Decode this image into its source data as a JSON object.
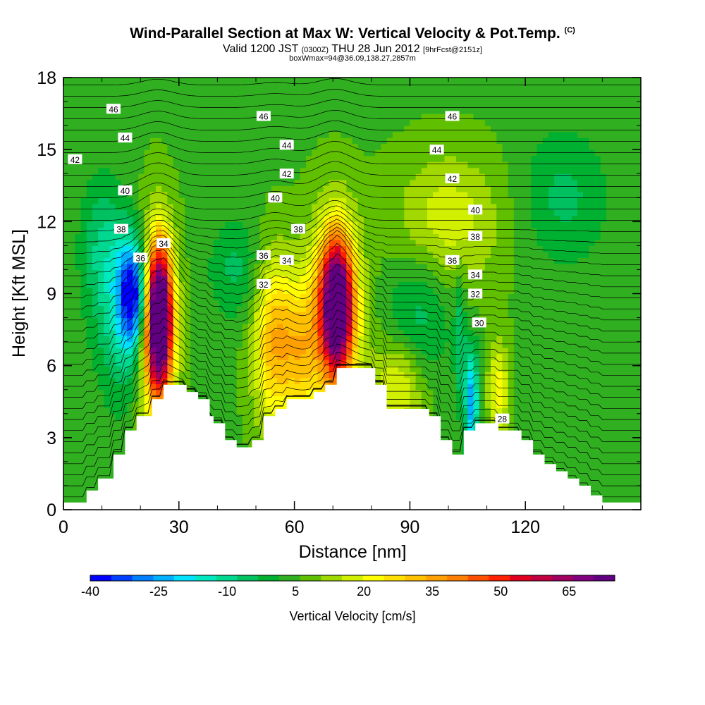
{
  "title": {
    "main": "Wind-Parallel Section at Max W: Vertical Velocity & Pot.Temp.",
    "mark": "(C)",
    "line2_a": "Valid 1200 JST",
    "line2_b": "(0300Z)",
    "line2_c": "THU 28 Jun 2012",
    "line2_d": "[9hrFcst@2151z]",
    "line3": "boxWmax=94@36.09,138.27,2857m"
  },
  "chart_data": {
    "type": "heatmap",
    "xlabel": "Distance [nm]",
    "ylabel": "Height [Kft MSL]",
    "xlim": [
      0,
      150
    ],
    "ylim": [
      0,
      18
    ],
    "xticks": [
      0,
      30,
      60,
      90,
      120
    ],
    "yticks": [
      0,
      3,
      6,
      9,
      12,
      15,
      18
    ],
    "colorbar": {
      "label": "Vertical Velocity [cm/s]",
      "tick_labels": [
        "-40",
        "-25",
        "-10",
        "5",
        "20",
        "35",
        "50",
        "65"
      ],
      "tick_values": [
        -40,
        -25,
        -10,
        5,
        20,
        35,
        50,
        65
      ],
      "range": [
        -40,
        75
      ],
      "colors": [
        "#0000ff",
        "#0040ff",
        "#0080ff",
        "#00b0ff",
        "#00e0ff",
        "#00e8c0",
        "#00d890",
        "#00c060",
        "#00b030",
        "#30b020",
        "#60c000",
        "#a0d800",
        "#d0f000",
        "#ffff00",
        "#ffe000",
        "#ffc000",
        "#ffa000",
        "#ff8000",
        "#ff5000",
        "#ff2000",
        "#e00020",
        "#c00040",
        "#a00060",
        "#800080",
        "#600080"
      ]
    },
    "background_w": 5,
    "terrain_height_kft": [
      [
        0,
        0.3
      ],
      [
        6,
        0.3
      ],
      [
        6,
        0.8
      ],
      [
        9,
        0.8
      ],
      [
        9,
        1.3
      ],
      [
        13,
        1.3
      ],
      [
        13,
        2.3
      ],
      [
        16,
        2.3
      ],
      [
        16,
        3.3
      ],
      [
        19,
        3.3
      ],
      [
        19,
        3.9
      ],
      [
        23,
        3.9
      ],
      [
        23,
        4.6
      ],
      [
        26,
        4.6
      ],
      [
        26,
        5.2
      ],
      [
        32,
        5.2
      ],
      [
        32,
        4.9
      ],
      [
        35,
        4.9
      ],
      [
        35,
        4.6
      ],
      [
        38,
        4.6
      ],
      [
        38,
        3.9
      ],
      [
        39,
        3.9
      ],
      [
        39,
        3.6
      ],
      [
        42,
        3.6
      ],
      [
        42,
        2.9
      ],
      [
        45,
        2.9
      ],
      [
        45,
        2.6
      ],
      [
        49,
        2.6
      ],
      [
        49,
        2.9
      ],
      [
        52,
        2.9
      ],
      [
        52,
        3.9
      ],
      [
        55,
        3.9
      ],
      [
        55,
        4.2
      ],
      [
        58,
        4.2
      ],
      [
        58,
        4.6
      ],
      [
        65,
        4.6
      ],
      [
        65,
        4.9
      ],
      [
        68,
        4.9
      ],
      [
        68,
        5.2
      ],
      [
        71,
        5.2
      ],
      [
        71,
        5.9
      ],
      [
        81,
        5.9
      ],
      [
        81,
        5.2
      ],
      [
        84,
        5.2
      ],
      [
        84,
        4.2
      ],
      [
        95,
        4.2
      ],
      [
        95,
        3.9
      ],
      [
        98,
        3.9
      ],
      [
        98,
        2.9
      ],
      [
        101,
        2.9
      ],
      [
        101,
        2.3
      ],
      [
        104,
        2.3
      ],
      [
        104,
        3.3
      ],
      [
        107,
        3.3
      ],
      [
        107,
        3.6
      ],
      [
        113,
        3.6
      ],
      [
        113,
        3.3
      ],
      [
        119,
        3.3
      ],
      [
        119,
        2.9
      ],
      [
        122,
        2.9
      ],
      [
        122,
        2.3
      ],
      [
        125,
        2.3
      ],
      [
        125,
        1.9
      ],
      [
        128,
        1.9
      ],
      [
        128,
        1.6
      ],
      [
        131,
        1.6
      ],
      [
        131,
        1.3
      ],
      [
        134,
        1.3
      ],
      [
        134,
        1.0
      ],
      [
        137,
        1.0
      ],
      [
        137,
        0.6
      ],
      [
        140,
        0.6
      ],
      [
        140,
        0.3
      ],
      [
        150,
        0.3
      ]
    ],
    "vertical_velocity_cells": [
      {
        "x": 25,
        "y": 8.0,
        "sx": 2.2,
        "sy": 2.0,
        "w": 70
      },
      {
        "x": 24,
        "y": 7.5,
        "sx": 3.5,
        "sy": 3.0,
        "w": 35
      },
      {
        "x": 18,
        "y": 9.0,
        "sx": 2.5,
        "sy": 1.5,
        "w": -38
      },
      {
        "x": 16,
        "y": 8.0,
        "sx": 5,
        "sy": 2.5,
        "w": -15
      },
      {
        "x": 71,
        "y": 8.5,
        "sx": 3.0,
        "sy": 2.0,
        "w": 68
      },
      {
        "x": 70,
        "y": 8.0,
        "sx": 5,
        "sy": 3,
        "w": 25
      },
      {
        "x": 55,
        "y": 7.0,
        "sx": 4,
        "sy": 2.5,
        "w": 30
      },
      {
        "x": 62,
        "y": 6.5,
        "sx": 3,
        "sy": 2,
        "w": 18
      },
      {
        "x": 87,
        "y": 5.2,
        "sx": 5,
        "sy": 1.5,
        "w": 18
      },
      {
        "x": 106,
        "y": 4.5,
        "sx": 1.2,
        "sy": 1.5,
        "w": -30
      },
      {
        "x": 103,
        "y": 7,
        "sx": 1,
        "sy": 2,
        "w": -10
      },
      {
        "x": 113,
        "y": 5.0,
        "sx": 2,
        "sy": 1.5,
        "w": 18
      },
      {
        "x": 92,
        "y": 8.0,
        "sx": 6,
        "sy": 2,
        "w": -10
      },
      {
        "x": 45,
        "y": 10,
        "sx": 5,
        "sy": 1.5,
        "w": -8
      },
      {
        "x": 130,
        "y": 13,
        "sx": 8,
        "sy": 2,
        "w": -8
      },
      {
        "x": 100,
        "y": 12,
        "sx": 10,
        "sy": 2,
        "w": 15
      },
      {
        "x": 10,
        "y": 11,
        "sx": 4,
        "sy": 2,
        "w": -10
      }
    ],
    "isentrope_labels": [
      {
        "value": "46",
        "x": 13,
        "y": 16.7
      },
      {
        "value": "46",
        "x": 52,
        "y": 16.4
      },
      {
        "value": "46",
        "x": 101,
        "y": 16.4
      },
      {
        "value": "44",
        "x": 16,
        "y": 15.5
      },
      {
        "value": "44",
        "x": 58,
        "y": 15.2
      },
      {
        "value": "44",
        "x": 97,
        "y": 15.0
      },
      {
        "value": "42",
        "x": 3,
        "y": 14.6
      },
      {
        "value": "42",
        "x": 58,
        "y": 14.0
      },
      {
        "value": "42",
        "x": 101,
        "y": 13.8
      },
      {
        "value": "40",
        "x": 16,
        "y": 13.3
      },
      {
        "value": "40",
        "x": 55,
        "y": 13.0
      },
      {
        "value": "40",
        "x": 107,
        "y": 12.5
      },
      {
        "value": "38",
        "x": 15,
        "y": 11.7
      },
      {
        "value": "38",
        "x": 61,
        "y": 11.7
      },
      {
        "value": "38",
        "x": 107,
        "y": 11.4
      },
      {
        "value": "36",
        "x": 20,
        "y": 10.5
      },
      {
        "value": "34",
        "x": 26,
        "y": 11.1
      },
      {
        "value": "36",
        "x": 52,
        "y": 10.6
      },
      {
        "value": "34",
        "x": 58,
        "y": 10.4
      },
      {
        "value": "36",
        "x": 101,
        "y": 10.4
      },
      {
        "value": "34",
        "x": 107,
        "y": 9.8
      },
      {
        "value": "32",
        "x": 52,
        "y": 9.4
      },
      {
        "value": "32",
        "x": 107,
        "y": 9.0
      },
      {
        "value": "30",
        "x": 108,
        "y": 7.8
      },
      {
        "value": "28",
        "x": 114,
        "y": 3.8
      }
    ]
  }
}
